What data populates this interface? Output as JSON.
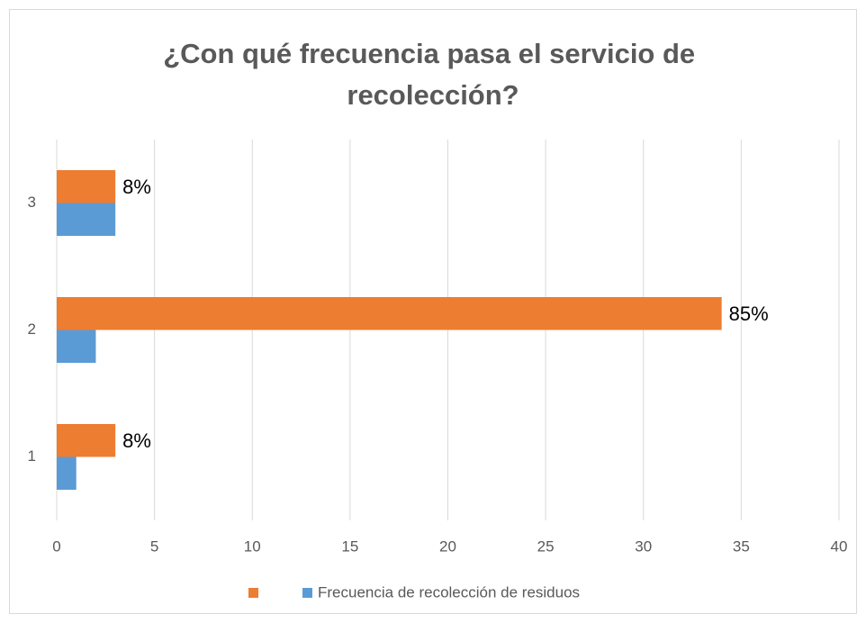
{
  "chart_data": {
    "type": "bar",
    "orientation": "horizontal",
    "title": "¿Con qué frecuencia pasa el servicio de recolección?",
    "categories": [
      "1",
      "2",
      "3"
    ],
    "series": [
      {
        "color": "#ed7d31",
        "values": [
          3,
          34,
          3
        ]
      },
      {
        "name": "Frecuencia de recolección de residuos",
        "color": "#5b9bd5",
        "values": [
          1,
          2,
          3
        ]
      }
    ],
    "annotations": [
      "8%",
      "85%",
      "8%"
    ],
    "xlim": [
      0,
      40
    ],
    "xticks": [
      0,
      5,
      10,
      15,
      20,
      25,
      30,
      35,
      40
    ],
    "grid": true,
    "legend": "bottom"
  }
}
